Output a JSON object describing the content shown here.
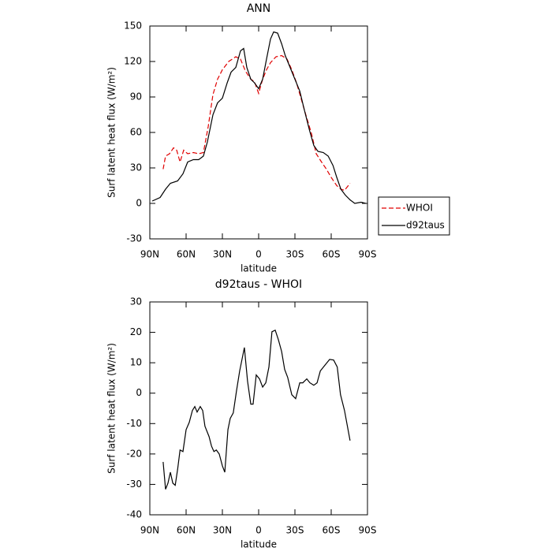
{
  "chart_data": [
    {
      "type": "line",
      "title": "ANN",
      "ylabel": "Surf latent heat flux (W/m²)",
      "xlabel": "latitude",
      "xlim": [
        90,
        -90
      ],
      "xticks": [
        {
          "value": 90,
          "label": "90N"
        },
        {
          "value": 60,
          "label": "60N"
        },
        {
          "value": 30,
          "label": "30N"
        },
        0,
        {
          "value": -30,
          "label": "30S"
        },
        {
          "value": -60,
          "label": "60S"
        },
        {
          "value": -90,
          "label": "90S"
        }
      ],
      "ylim": [
        -30,
        150
      ],
      "yticks": [
        -30,
        0,
        30,
        60,
        90,
        120,
        150
      ],
      "legend": "right",
      "series": [
        {
          "name": "WHOI",
          "color": "#e00000",
          "dash": true,
          "x": [
            79,
            77,
            73.7,
            70.4,
            67.8,
            65,
            62,
            58.7,
            54,
            49.6,
            45.7,
            41.7,
            37.8,
            34,
            30,
            24.8,
            18.9,
            15,
            11,
            6.5,
            3.5,
            0,
            -3.3,
            -6.5,
            -9.8,
            -14.3,
            -19,
            -23.5,
            -27.4,
            -31.3,
            -35,
            -39,
            -43.7,
            -47.6,
            -52,
            -56,
            -60,
            -64.6,
            -68,
            -71,
            -75.6
          ],
          "values": [
            29,
            40,
            42,
            47,
            45,
            35,
            45,
            42,
            43,
            42,
            43,
            65,
            92,
            105,
            113,
            120,
            124,
            122,
            112,
            105,
            103,
            93,
            105,
            113,
            119,
            124,
            125,
            122,
            113,
            102,
            89,
            75,
            59,
            42,
            35,
            29,
            22,
            15,
            12,
            11,
            17
          ]
        },
        {
          "name": "d92taus",
          "color": "#000000",
          "dash": false,
          "x": [
            88,
            81.5,
            77,
            73,
            67,
            62.6,
            58.7,
            54,
            49.6,
            45.7,
            42.4,
            37.8,
            34,
            30,
            26,
            22.8,
            18.9,
            15,
            12.4,
            9.8,
            6.5,
            3.5,
            0,
            -3.3,
            -6.5,
            -9.8,
            -12.4,
            -15.7,
            -19,
            -22,
            -26,
            -30,
            -34,
            -37.8,
            -42,
            -45.6,
            -49,
            -53.5,
            -57.5,
            -61.5,
            -64.6,
            -68,
            -71.7,
            -75.6,
            -79.5,
            -84.7,
            -88.6
          ],
          "values": [
            2,
            5,
            12,
            17,
            19,
            25,
            35,
            37,
            37,
            40,
            52,
            75,
            85,
            89,
            102,
            111,
            115,
            129,
            131,
            115,
            105,
            102,
            97,
            105,
            122,
            139,
            145,
            144,
            135,
            125,
            115,
            105,
            95,
            79,
            62,
            49,
            44,
            43,
            40,
            32,
            22,
            12,
            7,
            3,
            0,
            1,
            0
          ]
        }
      ]
    },
    {
      "type": "line",
      "title": "d92taus - WHOI",
      "ylabel": "Surf latent heat flux (W/m²)",
      "xlabel": "latitude",
      "xlim": [
        90,
        -90
      ],
      "xticks": [
        {
          "value": 90,
          "label": "90N"
        },
        {
          "value": 60,
          "label": "60N"
        },
        {
          "value": 30,
          "label": "30N"
        },
        0,
        {
          "value": -30,
          "label": "30S"
        },
        {
          "value": -60,
          "label": "60S"
        },
        {
          "value": -90,
          "label": "90S"
        }
      ],
      "ylim": [
        -40,
        30
      ],
      "yticks": [
        -40,
        -30,
        -20,
        -10,
        0,
        10,
        20,
        30
      ],
      "series": [
        {
          "color": "#000000",
          "dash": false,
          "x": [
            79,
            77,
            75,
            73,
            71,
            69,
            67,
            65,
            62.6,
            60,
            57.4,
            54.8,
            52.8,
            50.9,
            48.3,
            46.3,
            44.4,
            41,
            39,
            37,
            35,
            32.6,
            30,
            28,
            25.4,
            23.5,
            21,
            18.3,
            15.7,
            11.8,
            9.2,
            6.5,
            4.6,
            2,
            -0.7,
            -3.3,
            -5.9,
            -8.5,
            -11,
            -13.7,
            -16.3,
            -19,
            -21.5,
            -24,
            -27.4,
            -30.6,
            -34,
            -36.5,
            -39.8,
            -42.4,
            -45.6,
            -48.3,
            -51,
            -55,
            -58.7,
            -62,
            -65,
            -67.7,
            -71,
            -75.6
          ],
          "values": [
            -22.6,
            -31.6,
            -29.6,
            -26,
            -29.6,
            -30.3,
            -25,
            -18.7,
            -19.2,
            -12,
            -9.6,
            -5.7,
            -4.4,
            -6.2,
            -4.4,
            -5.7,
            -10.9,
            -14.3,
            -17.4,
            -19.2,
            -18.7,
            -20,
            -23.9,
            -26,
            -12,
            -8.3,
            -6.5,
            0.8,
            7.3,
            15,
            4,
            -3.6,
            -3.6,
            6,
            4.7,
            2,
            3.4,
            8.6,
            20.2,
            20.7,
            17.6,
            13.7,
            7.8,
            5.2,
            -0.5,
            -1.8,
            3.4,
            3.4,
            4.7,
            3.4,
            2.6,
            3.4,
            7.3,
            9.3,
            11.1,
            10.9,
            8.6,
            -0.5,
            -5.7,
            -15.6
          ]
        }
      ]
    }
  ]
}
